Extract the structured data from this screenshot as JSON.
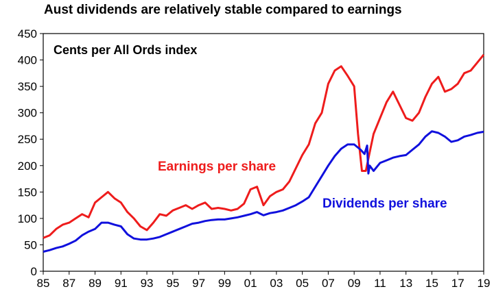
{
  "chart_data": {
    "type": "line",
    "title": "Aust dividends are relatively stable compared to earnings",
    "subtitle": "Cents per All Ords index",
    "xlabel": "",
    "ylabel": "",
    "xlim": [
      1985,
      2019
    ],
    "ylim": [
      0,
      450
    ],
    "x_ticks": [
      "85",
      "87",
      "89",
      "91",
      "93",
      "95",
      "97",
      "99",
      "01",
      "03",
      "05",
      "07",
      "09",
      "11",
      "13",
      "15",
      "17",
      "19"
    ],
    "y_ticks": [
      "0",
      "50",
      "100",
      "150",
      "200",
      "250",
      "300",
      "350",
      "400",
      "450"
    ],
    "grid": false,
    "colors": {
      "earnings": "#ee1c1c",
      "dividends": "#1010dd"
    },
    "annotations": [
      "Earnings per share",
      "Dividends per share"
    ],
    "series": [
      {
        "name": "Earnings per share",
        "x": [
          1985.0,
          1985.5,
          1986.0,
          1986.5,
          1987.0,
          1987.5,
          1988.0,
          1988.5,
          1989.0,
          1989.5,
          1990.0,
          1990.5,
          1991.0,
          1991.5,
          1992.0,
          1992.5,
          1993.0,
          1993.5,
          1994.0,
          1994.5,
          1995.0,
          1995.5,
          1996.0,
          1996.5,
          1997.0,
          1997.5,
          1998.0,
          1998.5,
          1999.0,
          1999.5,
          2000.0,
          2000.5,
          2001.0,
          2001.5,
          2002.0,
          2002.5,
          2003.0,
          2003.5,
          2004.0,
          2004.5,
          2005.0,
          2005.5,
          2006.0,
          2006.5,
          2007.0,
          2007.5,
          2008.0,
          2008.5,
          2009.0,
          2009.3,
          2009.6,
          2009.9,
          2010.2,
          2010.5,
          2011.0,
          2011.5,
          2012.0,
          2012.5,
          2013.0,
          2013.5,
          2014.0,
          2014.5,
          2015.0,
          2015.5,
          2016.0,
          2016.5,
          2017.0,
          2017.5,
          2018.0,
          2018.5,
          2019.0
        ],
        "values": [
          63,
          68,
          80,
          88,
          92,
          100,
          108,
          102,
          130,
          140,
          150,
          138,
          130,
          112,
          100,
          85,
          78,
          92,
          108,
          105,
          115,
          120,
          125,
          118,
          125,
          130,
          118,
          120,
          118,
          115,
          118,
          128,
          155,
          160,
          125,
          142,
          150,
          155,
          170,
          195,
          220,
          240,
          280,
          300,
          355,
          380,
          388,
          370,
          350,
          260,
          190,
          190,
          225,
          260,
          290,
          320,
          340,
          315,
          290,
          285,
          300,
          330,
          355,
          368,
          340,
          345,
          355,
          375,
          380,
          395,
          410
        ]
      },
      {
        "name": "Dividends per share",
        "x": [
          1985.0,
          1985.5,
          1986.0,
          1986.5,
          1987.0,
          1987.5,
          1988.0,
          1988.5,
          1989.0,
          1989.5,
          1990.0,
          1990.5,
          1991.0,
          1991.5,
          1992.0,
          1992.5,
          1993.0,
          1993.5,
          1994.0,
          1994.5,
          1995.0,
          1995.5,
          1996.0,
          1996.5,
          1997.0,
          1997.5,
          1998.0,
          1998.5,
          1999.0,
          1999.5,
          2000.0,
          2000.5,
          2001.0,
          2001.5,
          2002.0,
          2002.5,
          2003.0,
          2003.5,
          2004.0,
          2004.5,
          2005.0,
          2005.5,
          2006.0,
          2006.5,
          2007.0,
          2007.5,
          2008.0,
          2008.5,
          2009.0,
          2009.5,
          2009.8,
          2010.0,
          2010.1,
          2010.2,
          2010.5,
          2011.0,
          2011.5,
          2012.0,
          2012.5,
          2013.0,
          2013.5,
          2014.0,
          2014.5,
          2015.0,
          2015.5,
          2016.0,
          2016.5,
          2017.0,
          2017.5,
          2018.0,
          2018.5,
          2019.0
        ],
        "values": [
          37,
          40,
          44,
          47,
          52,
          58,
          68,
          75,
          80,
          92,
          92,
          88,
          85,
          70,
          62,
          60,
          60,
          62,
          65,
          70,
          75,
          80,
          85,
          90,
          92,
          95,
          97,
          98,
          98,
          100,
          102,
          105,
          108,
          112,
          106,
          110,
          112,
          115,
          120,
          125,
          132,
          140,
          160,
          180,
          200,
          218,
          232,
          240,
          240,
          230,
          222,
          238,
          185,
          200,
          190,
          205,
          210,
          215,
          218,
          220,
          230,
          240,
          255,
          265,
          262,
          255,
          245,
          248,
          255,
          258,
          262,
          264
        ]
      }
    ]
  }
}
